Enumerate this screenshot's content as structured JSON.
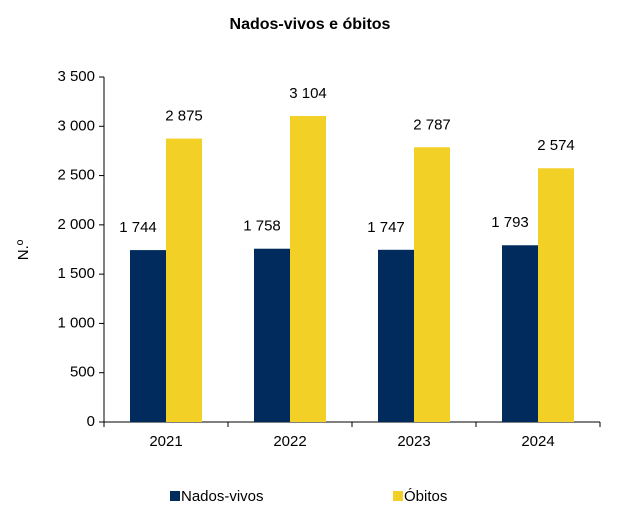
{
  "chart_data": {
    "type": "bar",
    "title": "Nados-vivos e óbitos",
    "ylabel": "N.º",
    "categories": [
      "2021",
      "2022",
      "2023",
      "2024"
    ],
    "series": [
      {
        "name": "Nados-vivos",
        "color": "#002b5c",
        "values": [
          1744,
          1758,
          1747,
          1793
        ],
        "value_labels": [
          "1 744",
          "1 758",
          "1 747",
          "1 793"
        ]
      },
      {
        "name": "Óbitos",
        "color": "#f2d026",
        "values": [
          2875,
          3104,
          2787,
          2574
        ],
        "value_labels": [
          "2 875",
          "3 104",
          "2 787",
          "2 574"
        ]
      }
    ],
    "ylim": [
      0,
      3500
    ],
    "yticks": [
      0,
      500,
      {
        "value": 1000,
        "label": "1 000"
      },
      {
        "value": 1500,
        "label": "1 500"
      },
      {
        "value": 2000,
        "label": "2 000"
      },
      {
        "value": 2500,
        "label": "2 500"
      },
      {
        "value": 3000,
        "label": "3 000"
      },
      {
        "value": 3500,
        "label": "3 500"
      }
    ],
    "grid": false
  }
}
